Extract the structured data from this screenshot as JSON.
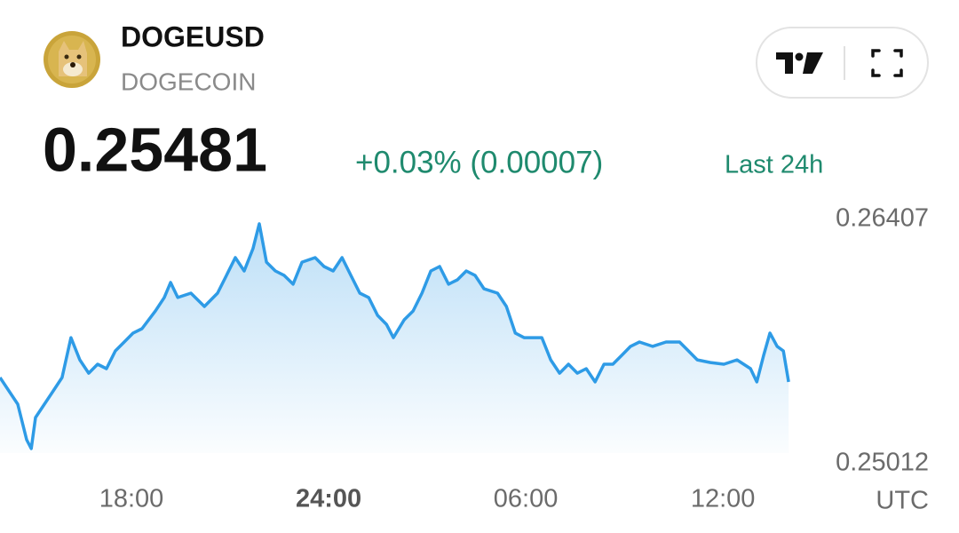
{
  "header": {
    "symbol": "DOGEUSD",
    "name": "DOGECOIN",
    "price": "0.25481",
    "change": "+0.03% (0.00007)",
    "period": "Last 24h"
  },
  "chart_data": {
    "type": "line",
    "x_unit": "UTC",
    "xlim": [
      14,
      38.05
    ],
    "xticks": [
      {
        "value": 18,
        "label": "18:00"
      },
      {
        "value": 24,
        "label": "24:00"
      },
      {
        "value": 30,
        "label": "06:00"
      },
      {
        "value": 36,
        "label": "12:00"
      }
    ],
    "ylim": [
      0.25012,
      0.26407
    ],
    "yticks": [
      0.26407,
      0.25012
    ],
    "x": [
      14,
      14.27,
      14.54,
      14.81,
      14.95,
      15.08,
      15.35,
      15.62,
      15.89,
      16.16,
      16.43,
      16.7,
      16.97,
      17.24,
      17.51,
      17.78,
      18.05,
      18.32,
      18.73,
      19.0,
      19.19,
      19.41,
      19.81,
      20.22,
      20.62,
      20.89,
      21.16,
      21.43,
      21.7,
      21.89,
      22.11,
      22.38,
      22.65,
      22.92,
      23.19,
      23.59,
      23.86,
      24.14,
      24.41,
      24.68,
      24.95,
      25.22,
      25.49,
      25.76,
      25.97,
      26.3,
      26.57,
      26.84,
      27.11,
      27.38,
      27.65,
      27.92,
      28.19,
      28.46,
      28.73,
      29.14,
      29.41,
      29.68,
      29.95,
      30.49,
      30.76,
      31.03,
      31.3,
      31.57,
      31.84,
      32.11,
      32.38,
      32.65,
      32.92,
      33.19,
      33.46,
      33.86,
      34.27,
      34.68,
      34.95,
      35.22,
      35.62,
      36.03,
      36.43,
      36.84,
      37.03,
      37.24,
      37.43,
      37.65,
      37.84,
      38.0
    ],
    "series": [
      {
        "color": "#2e9be6",
        "values": [
          0.25504,
          0.25428,
          0.25352,
          0.25149,
          0.25098,
          0.25276,
          0.25352,
          0.25428,
          0.25504,
          0.25732,
          0.25605,
          0.25529,
          0.2558,
          0.25555,
          0.25656,
          0.25707,
          0.25758,
          0.25783,
          0.25884,
          0.25961,
          0.26047,
          0.25961,
          0.25986,
          0.2591,
          0.25986,
          0.26087,
          0.26189,
          0.26113,
          0.2624,
          0.26382,
          0.26163,
          0.26113,
          0.26087,
          0.26037,
          0.26163,
          0.26189,
          0.26138,
          0.26113,
          0.26189,
          0.26087,
          0.25986,
          0.25961,
          0.25859,
          0.25808,
          0.25732,
          0.25834,
          0.25884,
          0.25986,
          0.26113,
          0.26138,
          0.26037,
          0.26062,
          0.26113,
          0.26087,
          0.26011,
          0.25986,
          0.2591,
          0.25758,
          0.25732,
          0.25732,
          0.25605,
          0.25529,
          0.2558,
          0.25529,
          0.25555,
          0.25479,
          0.2558,
          0.2558,
          0.25631,
          0.25682,
          0.25707,
          0.25682,
          0.25707,
          0.25707,
          0.25656,
          0.25605,
          0.2559,
          0.2558,
          0.25605,
          0.25555,
          0.25479,
          0.25631,
          0.25758,
          0.25682,
          0.25656,
          0.25479
        ]
      }
    ]
  }
}
